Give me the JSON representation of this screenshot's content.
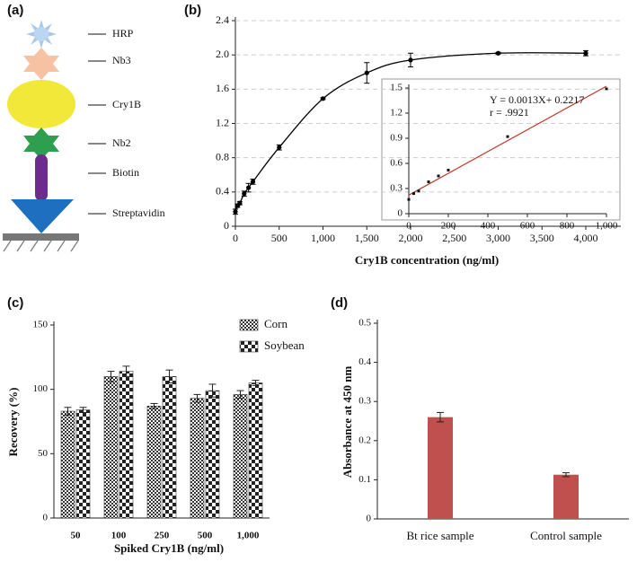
{
  "panel_labels": [
    "(a)",
    "(b)",
    "(c)",
    "(d)"
  ],
  "diagram": {
    "labels": [
      "HRP",
      "Nb3",
      "Cry1B",
      "Nb2",
      "Biotin",
      "Streptavidin"
    ]
  },
  "chart_data": [
    {
      "type": "line",
      "xlabel": "Cry1B concentration (ng/ml)",
      "color": "#000000",
      "x": [
        0,
        25,
        50,
        100,
        150,
        200,
        500,
        1000,
        1500,
        2000,
        3000,
        4000
      ],
      "values": [
        0.17,
        0.24,
        0.27,
        0.38,
        0.45,
        0.52,
        0.92,
        1.49,
        1.79,
        1.94,
        2.02,
        2.02
      ],
      "errors": [
        0.03,
        0.02,
        0.02,
        0.03,
        0.05,
        0.03,
        0.03,
        0.01,
        0.12,
        0.08,
        0.01,
        0.03
      ],
      "xlim": [
        0,
        4400
      ],
      "ylim": [
        0,
        2.4
      ],
      "xticks": [
        0,
        500,
        {
          "value": 1000,
          "label": "1,000"
        },
        {
          "value": 1500,
          "label": "1,500"
        },
        {
          "value": 2000,
          "label": "2,000"
        },
        {
          "value": 2500,
          "label": "2,500"
        },
        {
          "value": 3000,
          "label": "3,000"
        },
        {
          "value": 3500,
          "label": "3,500"
        },
        {
          "value": 4000,
          "label": "4,000"
        }
      ],
      "yticks": [
        0,
        0.4,
        0.8,
        1.2,
        1.6,
        {
          "value": 2,
          "label": "2.0"
        },
        2.4
      ],
      "grid": true,
      "inset": {
        "type": "scatter",
        "x": [
          0,
          25,
          50,
          100,
          150,
          200,
          500,
          1000
        ],
        "values": [
          0.17,
          0.24,
          0.27,
          0.38,
          0.45,
          0.52,
          0.92,
          1.49
        ],
        "xlim": [
          0,
          1000
        ],
        "ylim": [
          0,
          1.5
        ],
        "xticks": [
          0,
          200,
          400,
          600,
          800,
          {
            "value": 1000,
            "label": "1,000"
          }
        ],
        "yticks": [
          0,
          0.3,
          0.6,
          0.9,
          1.2,
          1.5
        ],
        "fit": {
          "slope": 0.0013,
          "intercept": 0.2217,
          "color": "#c0392b"
        },
        "annotations": [
          "Y = 0.0013X+ 0.2217",
          "r = .9921"
        ]
      }
    },
    {
      "type": "bar",
      "xlabel": "Spiked Cry1B (ng/ml)",
      "ylabel": "Recovery (%)",
      "categories": [
        "50",
        "100",
        "250",
        "500",
        "1,000"
      ],
      "series": [
        {
          "name": "Corn",
          "color": "#333333",
          "values": [
            83,
            110,
            87,
            93,
            96
          ],
          "errors": [
            3,
            4,
            2,
            3,
            3
          ]
        },
        {
          "name": "Soybean",
          "color": "#222222",
          "values": [
            84,
            114,
            110,
            99,
            105
          ],
          "errors": [
            2,
            4,
            5,
            5,
            2
          ]
        }
      ],
      "ylim": [
        0,
        150
      ],
      "yticks": [
        0,
        50,
        100,
        150
      ],
      "legend": "top-right"
    },
    {
      "type": "bar",
      "ylabel": "Absorbance at 450 nm",
      "categories": [
        "Bt rice sample",
        "Control sample"
      ],
      "series": [
        {
          "color": "#c0504d",
          "values": [
            0.26,
            0.113
          ],
          "errors": [
            0.012,
            0.005
          ]
        }
      ],
      "ylim": [
        0,
        0.5
      ],
      "yticks": [
        0,
        0.1,
        0.2,
        0.3,
        0.4,
        0.5
      ]
    }
  ]
}
